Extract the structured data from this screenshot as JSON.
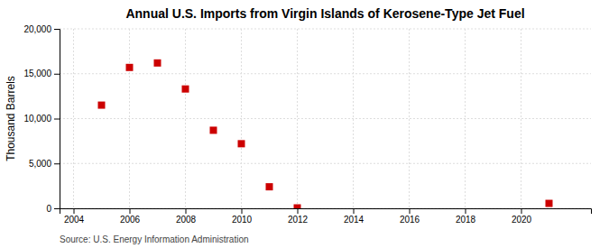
{
  "chart_data": {
    "type": "scatter",
    "title": "Annual U.S. Imports from Virgin Islands of Kerosene-Type Jet Fuel",
    "ylabel": "Thousand Barrels",
    "source": "Source: U.S. Energy Information Administration",
    "x": [
      2005,
      2006,
      2007,
      2008,
      2009,
      2010,
      2011,
      2012,
      2021
    ],
    "values": [
      11500,
      15700,
      16200,
      13300,
      8700,
      7200,
      2400,
      50,
      550
    ],
    "color": "#cc0000",
    "marker": "square",
    "xlim": [
      2003.5,
      2022.5
    ],
    "ylim": [
      0,
      20000
    ],
    "xticks": [
      2004,
      2006,
      2008,
      2010,
      2012,
      2014,
      2016,
      2018,
      2020
    ],
    "yticks": [
      0,
      {
        "value": 5000,
        "label": "5,000"
      },
      {
        "value": 10000,
        "label": "10,000"
      },
      {
        "value": 15000,
        "label": "15,000"
      },
      {
        "value": 20000,
        "label": "20,000"
      }
    ],
    "grid": true
  }
}
